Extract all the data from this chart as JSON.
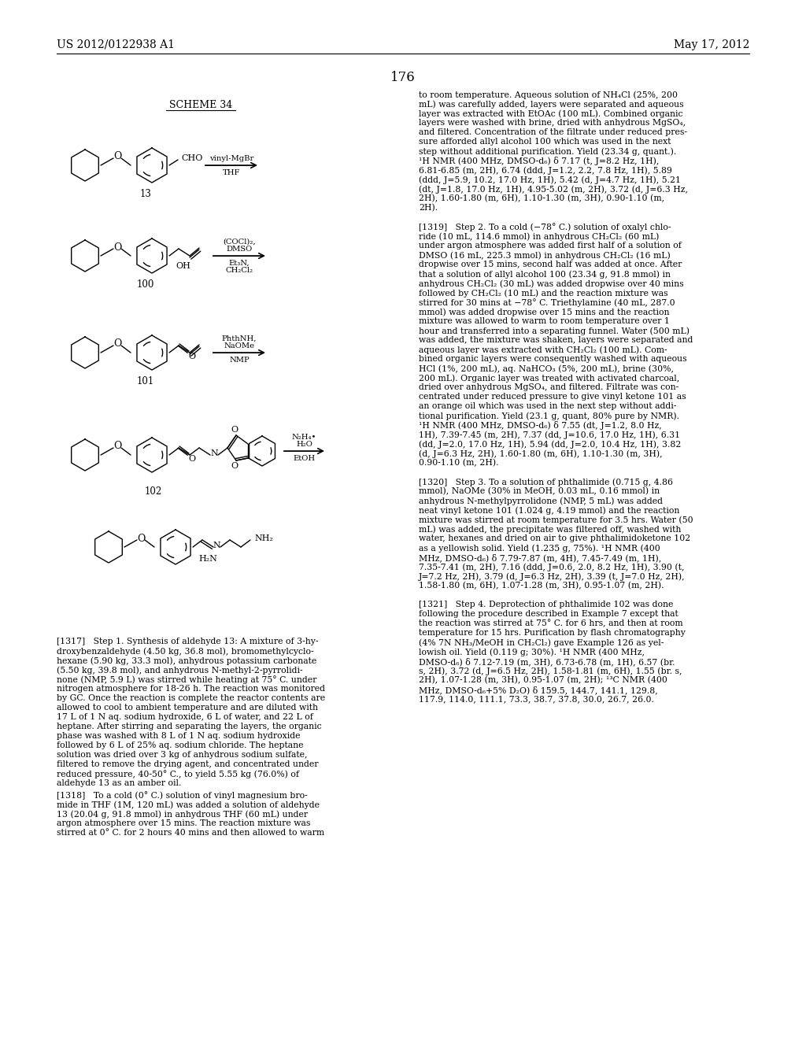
{
  "bg_color": "#ffffff",
  "text_color": "#000000",
  "header_left": "US 2012/0122938 A1",
  "header_right": "May 17, 2012",
  "page_number": "176",
  "scheme_label": "SCHEME 34",
  "right_col_lines": [
    "to room temperature. Aqueous solution of NH₄Cl (25%, 200",
    "mL) was carefully added, layers were separated and aqueous",
    "layer was extracted with EtOAc (100 mL). Combined organic",
    "layers were washed with brine, dried with anhydrous MgSO₄,",
    "and filtered. Concentration of the filtrate under reduced pres-",
    "sure afforded allyl alcohol 100 which was used in the next",
    "step without additional purification. Yield (23.34 g, quant.).",
    "¹H NMR (400 MHz, DMSO-d₆) δ 7.17 (t, J=8.2 Hz, 1H),",
    "6.81-6.85 (m, 2H), 6.74 (ddd, J=1.2, 2.2, 7.8 Hz, 1H), 5.89",
    "(ddd, J=5.9, 10.2, 17.0 Hz, 1H), 5.42 (d, J=4.7 Hz, 1H), 5.21",
    "(dt, J=1.8, 17.0 Hz, 1H), 4.95-5.02 (m, 2H), 3.72 (d, J=6.3 Hz,",
    "2H), 1.60-1.80 (m, 6H), 1.10-1.30 (m, 3H), 0.90-1.10 (m,",
    "2H).",
    "",
    "[1319]   Step 2. To a cold (−78° C.) solution of oxalyl chlo-",
    "ride (10 mL, 114.6 mmol) in anhydrous CH₂Cl₂ (60 mL)",
    "under argon atmosphere was added first half of a solution of",
    "DMSO (16 mL, 225.3 mmol) in anhydrous CH₂Cl₂ (16 mL)",
    "dropwise over 15 mins, second half was added at once. After",
    "that a solution of allyl alcohol 100 (23.34 g, 91.8 mmol) in",
    "anhydrous CH₂Cl₂ (30 mL) was added dropwise over 40 mins",
    "followed by CH₂Cl₂ (10 mL) and the reaction mixture was",
    "stirred for 30 mins at −78° C. Triethylamine (40 mL, 287.0",
    "mmol) was added dropwise over 15 mins and the reaction",
    "mixture was allowed to warm to room temperature over 1",
    "hour and transferred into a separating funnel. Water (500 mL)",
    "was added, the mixture was shaken, layers were separated and",
    "aqueous layer was extracted with CH₂Cl₂ (100 mL). Com-",
    "bined organic layers were consequently washed with aqueous",
    "HCl (1%, 200 mL), aq. NaHCO₃ (5%, 200 mL), brine (30%,",
    "200 mL). Organic layer was treated with activated charcoal,",
    "dried over anhydrous MgSO₄, and filtered. Filtrate was con-",
    "centrated under reduced pressure to give vinyl ketone 101 as",
    "an orange oil which was used in the next step without addi-",
    "tional purification. Yield (23.1 g, quant, 80% pure by NMR).",
    "¹H NMR (400 MHz, DMSO-d₆) δ 7.55 (dt, J=1.2, 8.0 Hz,",
    "1H), 7.39-7.45 (m, 2H), 7.37 (dd, J=10.6, 17.0 Hz, 1H), 6.31",
    "(dd, J=2.0, 17.0 Hz, 1H), 5.94 (dd, J=2.0, 10.4 Hz, 1H), 3.82",
    "(d, J=6.3 Hz, 2H), 1.60-1.80 (m, 6H), 1.10-1.30 (m, 3H),",
    "0.90-1.10 (m, 2H).",
    "",
    "[1320]   Step 3. To a solution of phthalimide (0.715 g, 4.86",
    "mmol), NaOMe (30% in MeOH, 0.03 mL, 0.16 mmol) in",
    "anhydrous N-methylpyrrolidone (NMP, 5 mL) was added",
    "neat vinyl ketone 101 (1.024 g, 4.19 mmol) and the reaction",
    "mixture was stirred at room temperature for 3.5 hrs. Water (50",
    "mL) was added, the precipitate was filtered off, washed with",
    "water, hexanes and dried on air to give phthalimidoketone 102",
    "as a yellowish solid. Yield (1.235 g, 75%). ¹H NMR (400",
    "MHz, DMSO-d₆) δ 7.79-7.87 (m, 4H), 7.45-7.49 (m, 1H),",
    "7.35-7.41 (m, 2H), 7.16 (ddd, J=0.6, 2.0, 8.2 Hz, 1H), 3.90 (t,",
    "J=7.2 Hz, 2H), 3.79 (d, J=6.3 Hz, 2H), 3.39 (t, J=7.0 Hz, 2H),",
    "1.58-1.80 (m, 6H), 1.07-1.28 (m, 3H), 0.95-1.07 (m, 2H).",
    "",
    "[1321]   Step 4. Deprotection of phthalimide 102 was done",
    "following the procedure described in Example 7 except that",
    "the reaction was stirred at 75° C. for 6 hrs, and then at room",
    "temperature for 15 hrs. Purification by flash chromatography",
    "(4% 7N NH₃/MeOH in CH₂Cl₂) gave Example 126 as yel-",
    "lowish oil. Yield (0.119 g; 30%). ¹H NMR (400 MHz,",
    "DMSO-d₆) δ 7.12-7.19 (m, 3H), 6.73-6.78 (m, 1H), 6.57 (br.",
    "s, 2H), 3.72 (d, J=6.5 Hz, 2H), 1.58-1.81 (m, 6H), 1.55 (br. s,",
    "2H), 1.07-1.28 (m, 3H), 0.95-1.07 (m, 2H); ¹³C NMR (400",
    "MHz, DMSO-d₆+5% D₂O) δ 159.5, 144.7, 141.1, 129.8,",
    "117.9, 114.0, 111.1, 73.3, 38.7, 37.8, 30.0, 26.7, 26.0."
  ],
  "left_para_1317_lines": [
    "[1317]   Step 1. Synthesis of aldehyde 13: A mixture of 3-hy-",
    "droxybenzaldehyde (4.50 kg, 36.8 mol), bromomethylcyclo-",
    "hexane (5.90 kg, 33.3 mol), anhydrous potassium carbonate",
    "(5.50 kg, 39.8 mol), and anhydrous N-methyl-2-pyrrolidi-",
    "none (NMP, 5.9 L) was stirred while heating at 75° C. under",
    "nitrogen atmosphere for 18-26 h. The reaction was monitored",
    "by GC. Once the reaction is complete the reactor contents are",
    "allowed to cool to ambient temperature and are diluted with",
    "17 L of 1 N aq. sodium hydroxide, 6 L of water, and 22 L of",
    "heptane. After stirring and separating the layers, the organic",
    "phase was washed with 8 L of 1 N aq. sodium hydroxide",
    "followed by 6 L of 25% aq. sodium chloride. The heptane",
    "solution was dried over 3 kg of anhydrous sodium sulfate,",
    "filtered to remove the drying agent, and concentrated under",
    "reduced pressure, 40-50° C., to yield 5.55 kg (76.0%) of",
    "aldehyde 13 as an amber oil."
  ],
  "left_para_1318_lines": [
    "[1318]   To a cold (0° C.) solution of vinyl magnesium bro-",
    "mide in THF (1M, 120 mL) was added a solution of aldehyde",
    "13 (20.04 g, 91.8 mmol) in anhydrous THF (60 mL) under",
    "argon atmosphere over 15 mins. The reaction mixture was",
    "stirred at 0° C. for 2 hours 40 mins and then allowed to warm"
  ]
}
